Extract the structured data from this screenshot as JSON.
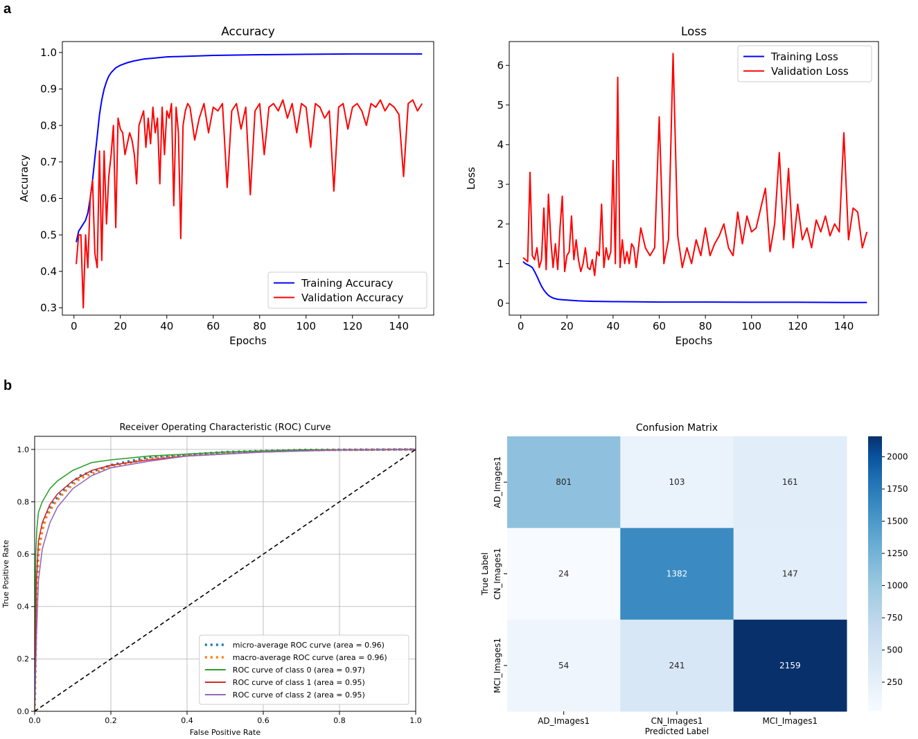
{
  "panel_labels": {
    "a": "a",
    "b": "b"
  },
  "chart_data": [
    {
      "type": "line",
      "title": "Accuracy",
      "xlabel": "Epochs",
      "ylabel": "Accuracy",
      "xlim": [
        -5,
        155
      ],
      "ylim": [
        0.28,
        1.03
      ],
      "xticks": [
        "0",
        "20",
        "40",
        "60",
        "80",
        "100",
        "120",
        "140"
      ],
      "xtick_values": [
        0,
        20,
        40,
        60,
        80,
        100,
        120,
        140
      ],
      "yticks": [
        "0.3",
        "0.4",
        "0.5",
        "0.6",
        "0.7",
        "0.8",
        "0.9",
        "1.0"
      ],
      "ytick_values": [
        0.3,
        0.4,
        0.5,
        0.6,
        0.7,
        0.8,
        0.9,
        1.0
      ],
      "legend": {
        "position": "lower-right",
        "entries": [
          "Training Accuracy",
          "Validation Accuracy"
        ]
      },
      "series": [
        {
          "name": "Training Accuracy",
          "color": "#0000ff",
          "x": [
            1,
            2,
            3,
            4,
            5,
            6,
            7,
            8,
            9,
            10,
            11,
            12,
            13,
            14,
            15,
            16,
            18,
            20,
            23,
            26,
            30,
            35,
            40,
            50,
            60,
            70,
            80,
            100,
            120,
            140,
            150
          ],
          "y": [
            0.48,
            0.51,
            0.52,
            0.53,
            0.54,
            0.56,
            0.6,
            0.65,
            0.71,
            0.77,
            0.83,
            0.87,
            0.9,
            0.92,
            0.935,
            0.945,
            0.958,
            0.965,
            0.972,
            0.977,
            0.982,
            0.985,
            0.988,
            0.99,
            0.992,
            0.993,
            0.994,
            0.995,
            0.996,
            0.996,
            0.996
          ]
        },
        {
          "name": "Validation Accuracy",
          "color": "#ff0000",
          "x": [
            1,
            2,
            3,
            4,
            5,
            6,
            7,
            8,
            9,
            10,
            11,
            12,
            13,
            14,
            15,
            16,
            17,
            18,
            19,
            20,
            21,
            22,
            23,
            24,
            25,
            26,
            27,
            28,
            29,
            30,
            31,
            32,
            33,
            34,
            35,
            36,
            37,
            38,
            39,
            40,
            41,
            42,
            43,
            44,
            45,
            46,
            47,
            48,
            49,
            50,
            52,
            54,
            56,
            58,
            60,
            62,
            64,
            66,
            68,
            70,
            72,
            74,
            76,
            78,
            80,
            82,
            84,
            86,
            88,
            90,
            92,
            94,
            96,
            98,
            100,
            102,
            104,
            106,
            108,
            110,
            112,
            114,
            116,
            118,
            120,
            122,
            124,
            126,
            128,
            130,
            132,
            134,
            136,
            138,
            140,
            142,
            144,
            146,
            148,
            150
          ],
          "y": [
            0.42,
            0.5,
            0.5,
            0.3,
            0.5,
            0.41,
            0.6,
            0.65,
            0.45,
            0.41,
            0.73,
            0.43,
            0.73,
            0.53,
            0.66,
            0.72,
            0.8,
            0.52,
            0.82,
            0.79,
            0.78,
            0.72,
            0.75,
            0.78,
            0.76,
            0.72,
            0.64,
            0.8,
            0.82,
            0.84,
            0.74,
            0.82,
            0.75,
            0.85,
            0.78,
            0.82,
            0.64,
            0.85,
            0.72,
            0.84,
            0.82,
            0.86,
            0.58,
            0.85,
            0.78,
            0.49,
            0.8,
            0.84,
            0.86,
            0.85,
            0.76,
            0.82,
            0.86,
            0.78,
            0.85,
            0.84,
            0.86,
            0.63,
            0.84,
            0.86,
            0.79,
            0.85,
            0.61,
            0.84,
            0.86,
            0.72,
            0.85,
            0.86,
            0.84,
            0.87,
            0.82,
            0.86,
            0.78,
            0.86,
            0.85,
            0.74,
            0.86,
            0.85,
            0.82,
            0.84,
            0.62,
            0.85,
            0.86,
            0.79,
            0.85,
            0.86,
            0.84,
            0.8,
            0.86,
            0.85,
            0.87,
            0.84,
            0.86,
            0.85,
            0.83,
            0.66,
            0.86,
            0.87,
            0.84,
            0.86
          ]
        }
      ]
    },
    {
      "type": "line",
      "title": "Loss",
      "xlabel": "Epochs",
      "ylabel": "Loss",
      "xlim": [
        -5,
        155
      ],
      "ylim": [
        -0.3,
        6.6
      ],
      "xticks": [
        "0",
        "20",
        "40",
        "60",
        "80",
        "100",
        "120",
        "140"
      ],
      "xtick_values": [
        0,
        20,
        40,
        60,
        80,
        100,
        120,
        140
      ],
      "yticks": [
        "0",
        "1",
        "2",
        "3",
        "4",
        "5",
        "6"
      ],
      "ytick_values": [
        0,
        1,
        2,
        3,
        4,
        5,
        6
      ],
      "legend": {
        "position": "upper-right",
        "entries": [
          "Training Loss",
          "Validation Loss"
        ]
      },
      "series": [
        {
          "name": "Training Loss",
          "color": "#0000ff",
          "x": [
            1,
            2,
            3,
            4,
            5,
            6,
            7,
            8,
            9,
            10,
            11,
            12,
            13,
            14,
            16,
            18,
            20,
            25,
            30,
            40,
            50,
            60,
            80,
            100,
            120,
            140,
            150
          ],
          "y": [
            1.05,
            1.0,
            0.97,
            0.94,
            0.9,
            0.8,
            0.68,
            0.55,
            0.43,
            0.33,
            0.26,
            0.2,
            0.16,
            0.13,
            0.1,
            0.09,
            0.08,
            0.06,
            0.05,
            0.04,
            0.035,
            0.03,
            0.03,
            0.025,
            0.025,
            0.02,
            0.02
          ]
        },
        {
          "name": "Validation Loss",
          "color": "#ff0000",
          "x": [
            1,
            2,
            3,
            4,
            5,
            6,
            7,
            8,
            9,
            10,
            11,
            12,
            13,
            14,
            15,
            16,
            17,
            18,
            19,
            20,
            21,
            22,
            23,
            24,
            25,
            26,
            27,
            28,
            29,
            30,
            31,
            32,
            33,
            34,
            35,
            36,
            37,
            38,
            39,
            40,
            41,
            42,
            43,
            44,
            45,
            46,
            47,
            48,
            49,
            50,
            52,
            54,
            56,
            58,
            60,
            62,
            64,
            66,
            68,
            70,
            72,
            74,
            76,
            78,
            80,
            82,
            84,
            86,
            88,
            90,
            92,
            94,
            96,
            98,
            100,
            102,
            104,
            106,
            108,
            110,
            112,
            114,
            116,
            118,
            120,
            122,
            124,
            126,
            128,
            130,
            132,
            134,
            136,
            138,
            140,
            142,
            144,
            146,
            148,
            150
          ],
          "y": [
            1.15,
            1.1,
            1.05,
            3.3,
            1.2,
            1.1,
            1.4,
            0.9,
            1.1,
            2.4,
            0.85,
            2.75,
            1.6,
            0.9,
            1.5,
            0.85,
            1.9,
            2.7,
            0.8,
            1.2,
            1.3,
            2.2,
            1.1,
            1.6,
            1.1,
            0.8,
            1.0,
            1.4,
            0.9,
            0.85,
            1.1,
            0.7,
            1.3,
            1.2,
            2.5,
            0.9,
            1.4,
            1.1,
            1.3,
            3.6,
            1.0,
            5.7,
            0.9,
            1.6,
            1.0,
            1.3,
            1.0,
            1.5,
            1.4,
            0.9,
            1.9,
            1.4,
            1.2,
            1.4,
            4.7,
            1.0,
            1.6,
            6.3,
            1.7,
            0.9,
            1.4,
            1.0,
            1.6,
            1.2,
            1.9,
            1.2,
            1.5,
            1.7,
            2.0,
            1.4,
            1.2,
            2.3,
            1.5,
            2.2,
            1.8,
            1.9,
            2.4,
            2.9,
            1.3,
            2.0,
            3.8,
            1.6,
            3.4,
            1.4,
            2.5,
            1.6,
            1.9,
            1.4,
            2.1,
            1.8,
            2.2,
            1.7,
            2.0,
            1.8,
            4.3,
            1.6,
            2.4,
            2.3,
            1.4,
            1.8
          ]
        }
      ]
    },
    {
      "type": "line",
      "title": "Receiver Operating Characteristic (ROC) Curve",
      "xlabel": "False Positive Rate",
      "ylabel": "True Positive Rate",
      "xlim": [
        0.0,
        1.0
      ],
      "ylim": [
        0.0,
        1.05
      ],
      "xticks": [
        "0.0",
        "0.2",
        "0.4",
        "0.6",
        "0.8",
        "1.0"
      ],
      "xtick_values": [
        0,
        0.2,
        0.4,
        0.6,
        0.8,
        1.0
      ],
      "yticks": [
        "0.0",
        "0.2",
        "0.4",
        "0.6",
        "0.8",
        "1.0"
      ],
      "ytick_values": [
        0,
        0.2,
        0.4,
        0.6,
        0.8,
        1.0
      ],
      "grid": true,
      "legend": {
        "position": "lower-right",
        "entries": [
          "micro-average ROC curve (area = 0.96)",
          "macro-average ROC curve (area = 0.96)",
          "ROC curve of class 0 (area = 0.97)",
          "ROC curve of class 1 (area = 0.95)",
          "ROC curve of class 2 (area = 0.95)"
        ]
      },
      "series": [
        {
          "name": "micro-average ROC curve (area = 0.96)",
          "color": "#1f77b4",
          "style": "dotted",
          "x": [
            0,
            0.005,
            0.01,
            0.02,
            0.03,
            0.05,
            0.08,
            0.12,
            0.2,
            0.3,
            0.5,
            0.7,
            1.0
          ],
          "y": [
            0,
            0.45,
            0.62,
            0.7,
            0.75,
            0.8,
            0.85,
            0.9,
            0.94,
            0.97,
            0.99,
            0.998,
            1.0
          ]
        },
        {
          "name": "macro-average ROC curve (area = 0.96)",
          "color": "#ff7f0e",
          "style": "dotted",
          "x": [
            0,
            0.005,
            0.01,
            0.02,
            0.03,
            0.05,
            0.08,
            0.12,
            0.2,
            0.3,
            0.5,
            0.7,
            1.0
          ],
          "y": [
            0,
            0.4,
            0.6,
            0.69,
            0.74,
            0.79,
            0.84,
            0.89,
            0.935,
            0.965,
            0.988,
            0.997,
            1.0
          ]
        },
        {
          "name": "ROC curve of class 0 (area = 0.97)",
          "color": "#2ca02c",
          "style": "solid",
          "x": [
            0,
            0.003,
            0.006,
            0.01,
            0.02,
            0.04,
            0.06,
            0.1,
            0.15,
            0.2,
            0.3,
            0.5,
            0.7,
            1.0
          ],
          "y": [
            0,
            0.6,
            0.7,
            0.76,
            0.8,
            0.85,
            0.88,
            0.92,
            0.95,
            0.96,
            0.975,
            0.99,
            0.998,
            1.0
          ]
        },
        {
          "name": "ROC curve of class 1 (area = 0.95)",
          "color": "#d62728",
          "style": "solid",
          "x": [
            0,
            0.005,
            0.01,
            0.02,
            0.04,
            0.06,
            0.1,
            0.15,
            0.2,
            0.3,
            0.4,
            0.6,
            0.8,
            1.0
          ],
          "y": [
            0,
            0.5,
            0.65,
            0.72,
            0.79,
            0.83,
            0.88,
            0.92,
            0.94,
            0.96,
            0.975,
            0.99,
            0.998,
            1.0
          ]
        },
        {
          "name": "ROC curve of class 2 (area = 0.95)",
          "color": "#9467bd",
          "style": "solid",
          "x": [
            0,
            0.005,
            0.01,
            0.02,
            0.04,
            0.06,
            0.1,
            0.15,
            0.2,
            0.3,
            0.4,
            0.6,
            0.8,
            1.0
          ],
          "y": [
            0,
            0.3,
            0.5,
            0.62,
            0.72,
            0.78,
            0.85,
            0.9,
            0.93,
            0.955,
            0.975,
            0.99,
            0.998,
            1.0
          ]
        },
        {
          "name": "chance",
          "color": "#000000",
          "style": "dashed",
          "x": [
            0,
            1
          ],
          "y": [
            0,
            1
          ]
        }
      ]
    },
    {
      "type": "heatmap",
      "title": "Confusion Matrix",
      "xlabel": "Predicted Label",
      "ylabel": "True Label",
      "row_labels": [
        "AD_Images1",
        "CN_Images1",
        "MCI_Images1"
      ],
      "col_labels": [
        "AD_Images1",
        "CN_Images1",
        "MCI_Images1"
      ],
      "values": [
        [
          801,
          103,
          161
        ],
        [
          24,
          1382,
          147
        ],
        [
          54,
          241,
          2159
        ]
      ],
      "colorbar": {
        "min": 24,
        "max": 2159,
        "ticks": [
          "250",
          "500",
          "750",
          "1000",
          "1250",
          "1500",
          "1750",
          "2000"
        ],
        "tick_values": [
          250,
          500,
          750,
          1000,
          1250,
          1500,
          1750,
          2000
        ]
      },
      "cell_colors": [
        [
          "#8fc1de",
          "#eaf2fb",
          "#e1edf8"
        ],
        [
          "#f7fbff",
          "#3b8bc2",
          "#e2eef9"
        ],
        [
          "#eef5fc",
          "#d8e7f5",
          "#08306b"
        ]
      ],
      "text_colors": [
        [
          "#262626",
          "#262626",
          "#262626"
        ],
        [
          "#262626",
          "#ffffff",
          "#262626"
        ],
        [
          "#262626",
          "#262626",
          "#ffffff"
        ]
      ]
    }
  ]
}
